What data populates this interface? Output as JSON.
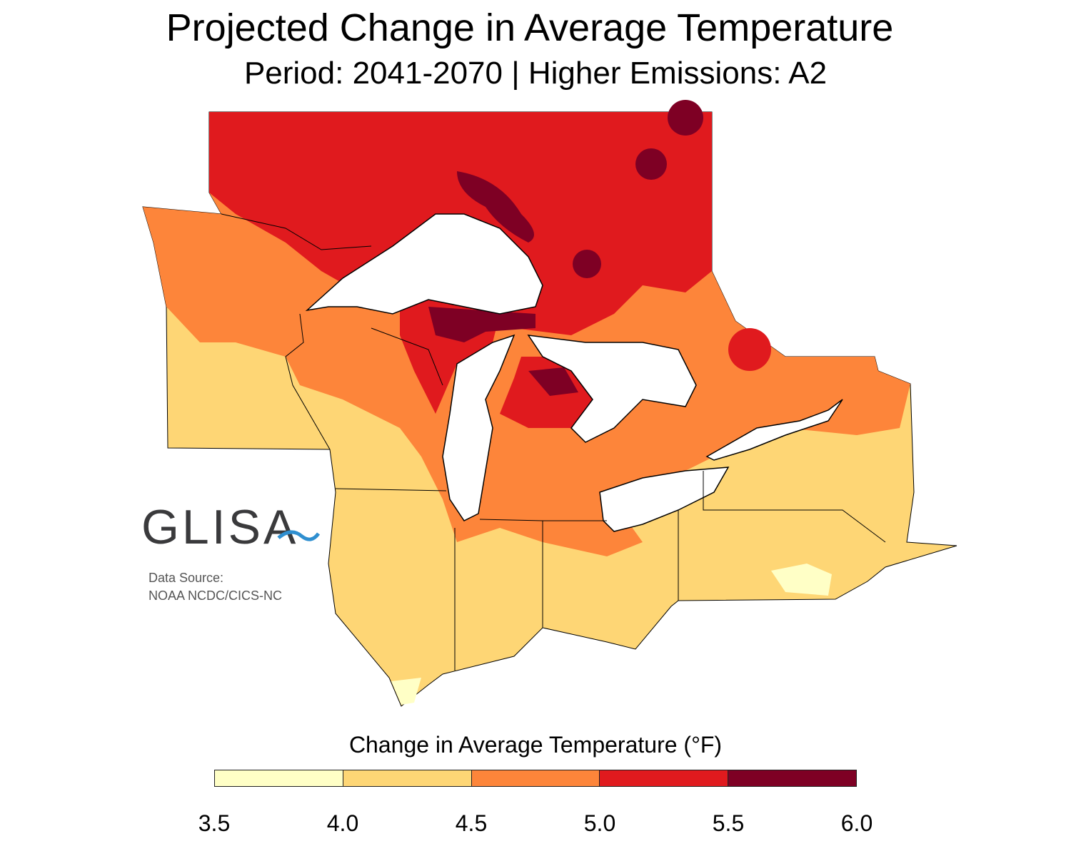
{
  "title": "Projected Change in Average Temperature",
  "subtitle": "Period: 2041-2070 | Higher Emissions: A2",
  "logo": "GLISA",
  "source": {
    "line1": "Data Source:",
    "line2": "NOAA NCDC/CICS-NC"
  },
  "legend": {
    "title": "Change in Average Temperature (°F)",
    "bins": [
      {
        "from": 3.5,
        "to": 4.0,
        "color": "#FFFFC6"
      },
      {
        "from": 4.0,
        "to": 4.5,
        "color": "#FED675"
      },
      {
        "from": 4.5,
        "to": 5.0,
        "color": "#FD853A"
      },
      {
        "from": 5.0,
        "to": 5.5,
        "color": "#E01A1E"
      },
      {
        "from": 5.5,
        "to": 6.0,
        "color": "#7E0024"
      }
    ],
    "ticks": [
      "3.5",
      "4.0",
      "4.5",
      "5.0",
      "5.5",
      "6.0"
    ]
  },
  "colors": {
    "lake": "#FFFFFF",
    "border": "#000000",
    "logo_wave": "#2f8fd0"
  }
}
